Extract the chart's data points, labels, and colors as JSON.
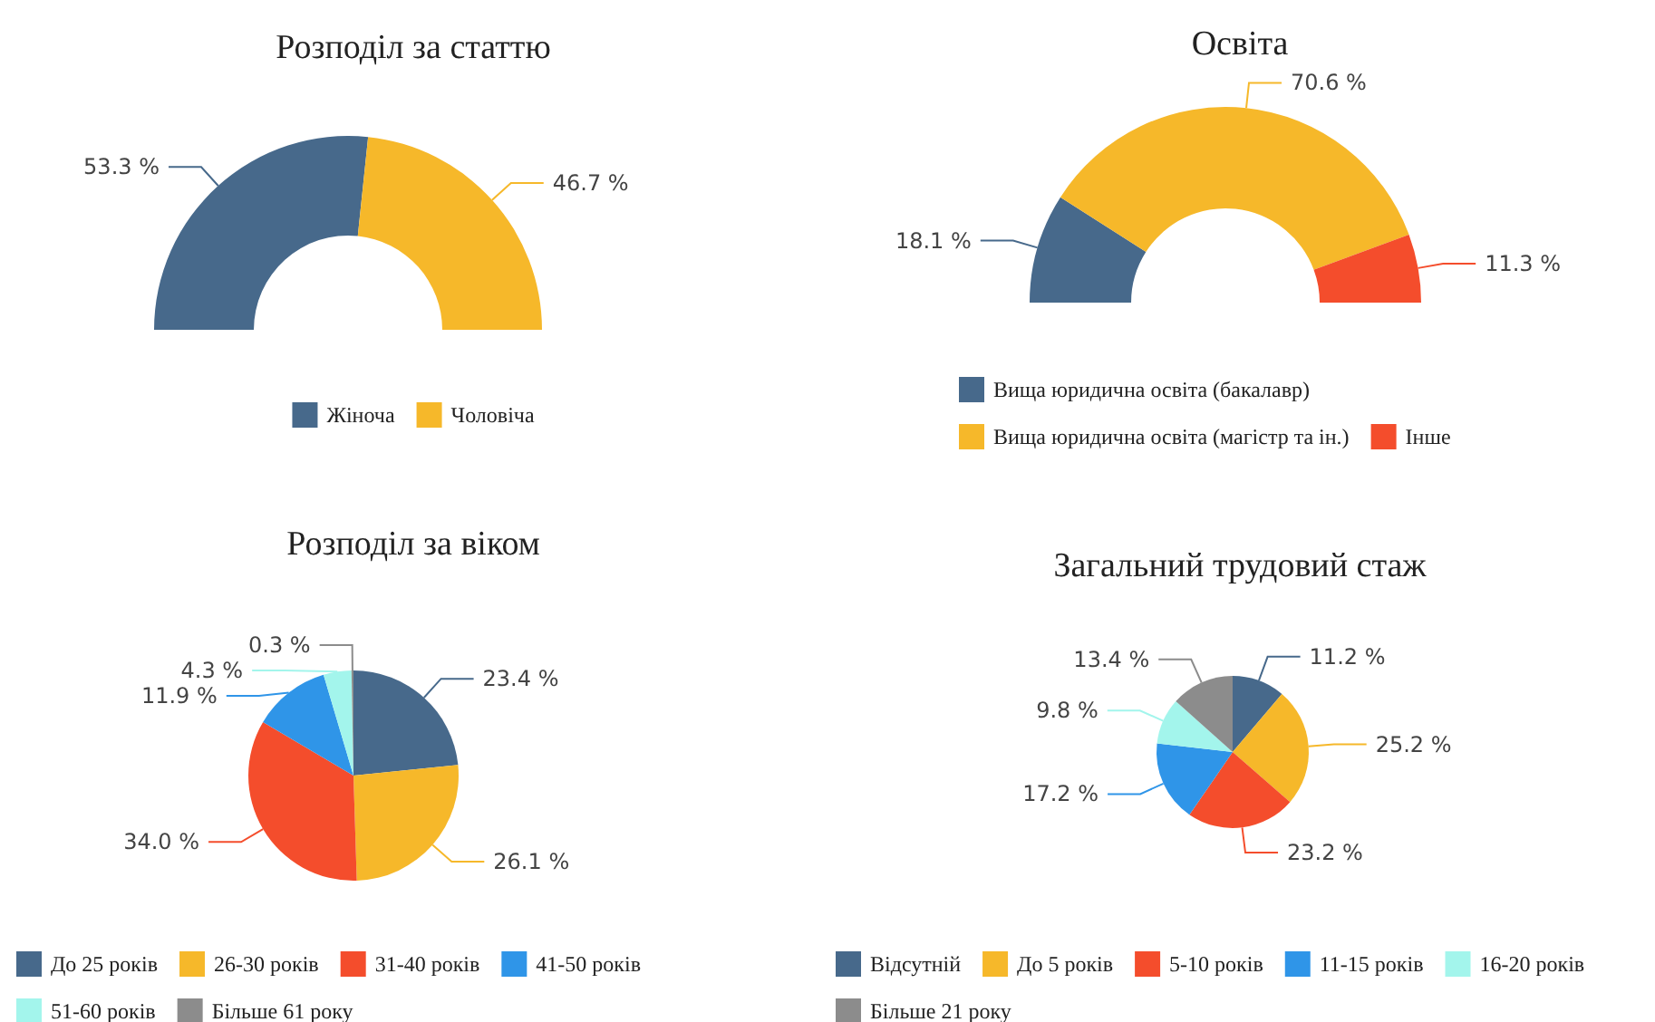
{
  "chart_data": [
    {
      "type": "donut",
      "title": "Розподіл за статтю",
      "categories": [
        "Жіноча",
        "Чоловіча"
      ],
      "values": [
        53.3,
        46.7
      ],
      "value_labels": [
        "53.3 %",
        "46.7 %"
      ],
      "colors": [
        "#47698b",
        "#f6b82a"
      ],
      "legend": "bottom"
    },
    {
      "type": "donut",
      "title": "Освіта",
      "categories": [
        "Вища юридична освіта (бакалавр)",
        "Вища юридична освіта (магістр та ін.)",
        "Інше"
      ],
      "values": [
        18.1,
        70.6,
        11.3
      ],
      "value_labels": [
        "18.1 %",
        "70.6 %",
        "11.3 %"
      ],
      "colors": [
        "#47698b",
        "#f6b82a",
        "#f44d2c"
      ],
      "legend": "bottom left"
    },
    {
      "type": "pie",
      "title": "Розподіл за віком",
      "categories": [
        "До 25 років",
        "26-30 років",
        "31-40 років",
        "41-50 років",
        "51-60 років",
        "Більше 61 року"
      ],
      "values": [
        23.4,
        26.1,
        34.0,
        11.9,
        4.3,
        0.3
      ],
      "value_labels": [
        "23.4 %",
        "26.1 %",
        "34.0 %",
        "11.9 %",
        "4.3 %",
        "0.3 %"
      ],
      "colors": [
        "#47698b",
        "#f6b82a",
        "#f44d2c",
        "#2f95e8",
        "#a3f5ec",
        "#8c8c8c"
      ],
      "legend": "bottom left"
    },
    {
      "type": "pie",
      "title": "Загальний трудовий стаж",
      "categories": [
        "Відсутній",
        "До 5 років",
        "5-10 років",
        "11-15 років",
        "16-20 років",
        "Більше 21 року"
      ],
      "values": [
        11.2,
        25.2,
        23.2,
        17.2,
        9.8,
        13.4
      ],
      "value_labels": [
        "11.2 %",
        "25.2 %",
        "23.2 %",
        "17.2 %",
        "9.8 %",
        "13.4 %"
      ],
      "colors": [
        "#47698b",
        "#f6b82a",
        "#f44d2c",
        "#2f95e8",
        "#a3f5ec",
        "#8c8c8c"
      ],
      "legend": "bottom left"
    }
  ]
}
